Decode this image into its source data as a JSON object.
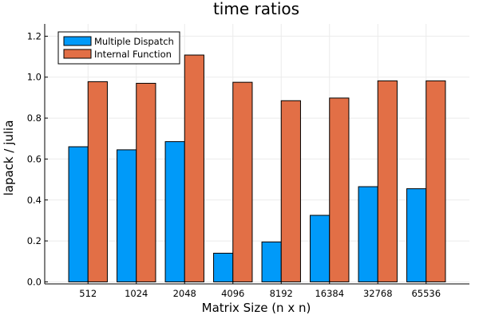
{
  "chart_data": {
    "type": "bar",
    "title": "time ratios",
    "xlabel": "Matrix Size (n x n)",
    "ylabel": "lapack / julia",
    "categories": [
      "512",
      "1024",
      "2048",
      "4096",
      "8192",
      "16384",
      "32768",
      "65536"
    ],
    "series": [
      {
        "name": "Multiple Dispatch",
        "color": "#009af9",
        "values": [
          0.66,
          0.645,
          0.685,
          0.14,
          0.195,
          0.325,
          0.465,
          0.455
        ]
      },
      {
        "name": "Internal Function",
        "color": "#e26f46",
        "values": [
          0.978,
          0.97,
          1.108,
          0.975,
          0.885,
          0.898,
          0.982,
          0.982
        ]
      }
    ],
    "ylim": [
      -0.01,
      1.26
    ],
    "yticks": [
      0.0,
      0.2,
      0.4,
      0.6,
      0.8,
      1.0,
      1.2
    ],
    "ytick_labels": [
      "0.0",
      "0.2",
      "0.4",
      "0.6",
      "0.8",
      "1.0",
      "1.2"
    ],
    "grid": true,
    "legend_position": "top-left"
  }
}
